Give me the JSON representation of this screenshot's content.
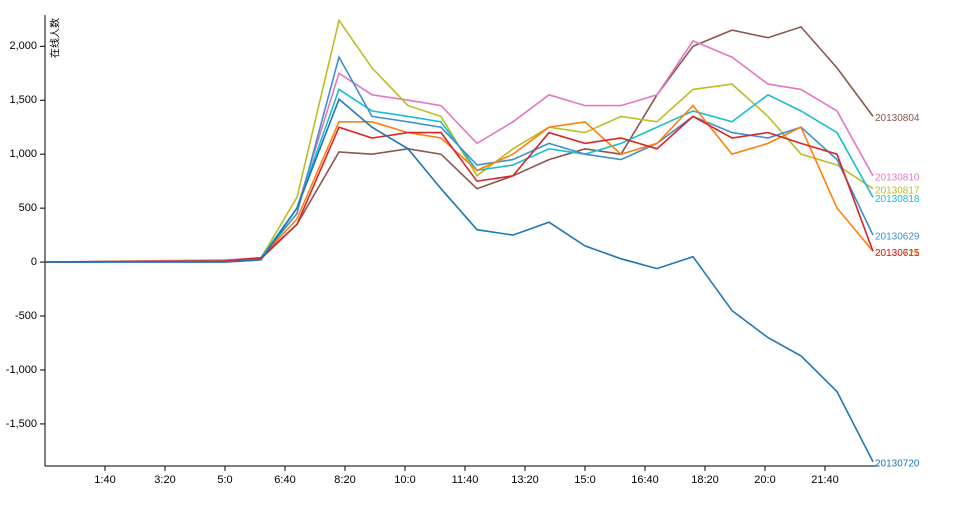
{
  "chart_data": {
    "type": "line",
    "y_label": "在线人数",
    "x": [
      0,
      300,
      360,
      420,
      490,
      545,
      605,
      660,
      720,
      780,
      840,
      900,
      960,
      1020,
      1080,
      1145,
      1205,
      1260,
      1320,
      1380
    ],
    "xlim": [
      0,
      1390
    ],
    "xticks": [
      {
        "value": 100,
        "label": "1:40"
      },
      {
        "value": 200,
        "label": "3:20"
      },
      {
        "value": 300,
        "label": "5:0"
      },
      {
        "value": 400,
        "label": "6:40"
      },
      {
        "value": 500,
        "label": "8:20"
      },
      {
        "value": 600,
        "label": "10:0"
      },
      {
        "value": 700,
        "label": "11:40"
      },
      {
        "value": 800,
        "label": "13:20"
      },
      {
        "value": 900,
        "label": "15:0"
      },
      {
        "value": 1000,
        "label": "16:40"
      },
      {
        "value": 1100,
        "label": "18:20"
      },
      {
        "value": 1200,
        "label": "20:0"
      },
      {
        "value": 1300,
        "label": "21:40"
      }
    ],
    "ylim": [
      -1890,
      2290
    ],
    "yticks": [
      -1500,
      -1000,
      -500,
      0,
      500,
      1000,
      1500,
      2000
    ],
    "ytick_labels_fmt": null,
    "series": [
      {
        "name": "20130804",
        "color": "#8c564b",
        "values": [
          0,
          10,
          30,
          350,
          1020,
          1000,
          1050,
          1000,
          680,
          800,
          950,
          1050,
          1000,
          1550,
          2000,
          2150,
          2080,
          2180,
          1800,
          1350
        ]
      },
      {
        "name": "20130810",
        "color": "#e377c2",
        "values": [
          0,
          20,
          40,
          500,
          1750,
          1550,
          1500,
          1450,
          1100,
          1300,
          1550,
          1450,
          1450,
          1550,
          2050,
          1900,
          1650,
          1600,
          1400,
          800
        ]
      },
      {
        "name": "20130817",
        "color": "#bcbd22",
        "values": [
          0,
          10,
          40,
          600,
          2240,
          1800,
          1450,
          1350,
          800,
          1050,
          1250,
          1200,
          1350,
          1300,
          1600,
          1650,
          1350,
          1000,
          900,
          680
        ]
      },
      {
        "name": "20130818",
        "color": "#17becf",
        "values": [
          0,
          10,
          40,
          500,
          1600,
          1400,
          1350,
          1300,
          850,
          900,
          1050,
          1000,
          1100,
          1250,
          1400,
          1300,
          1550,
          1400,
          1200,
          600
        ]
      },
      {
        "name": "20130629",
        "color": "#3f8fd2",
        "values": [
          0,
          10,
          40,
          450,
          1900,
          1350,
          1300,
          1250,
          900,
          950,
          1100,
          1000,
          950,
          1100,
          1350,
          1200,
          1150,
          1250,
          950,
          250
        ]
      },
      {
        "name": "20130721",
        "color": "#ff7f0e",
        "values": [
          0,
          10,
          40,
          400,
          1300,
          1300,
          1200,
          1150,
          850,
          1000,
          1250,
          1300,
          1000,
          1100,
          1450,
          1000,
          1100,
          1250,
          500,
          100
        ]
      },
      {
        "name": "20130615",
        "color": "#d62728",
        "values": [
          0,
          10,
          40,
          350,
          1250,
          1150,
          1200,
          1200,
          750,
          800,
          1200,
          1100,
          1150,
          1050,
          1350,
          1150,
          1200,
          1100,
          1000,
          100
        ]
      },
      {
        "name": "20130720",
        "color": "#1f77b4",
        "values": [
          0,
          0,
          20,
          500,
          1510,
          1250,
          1050,
          680,
          300,
          250,
          370,
          150,
          30,
          -60,
          50,
          -450,
          -700,
          -870,
          -1200,
          -1850
        ]
      }
    ]
  }
}
